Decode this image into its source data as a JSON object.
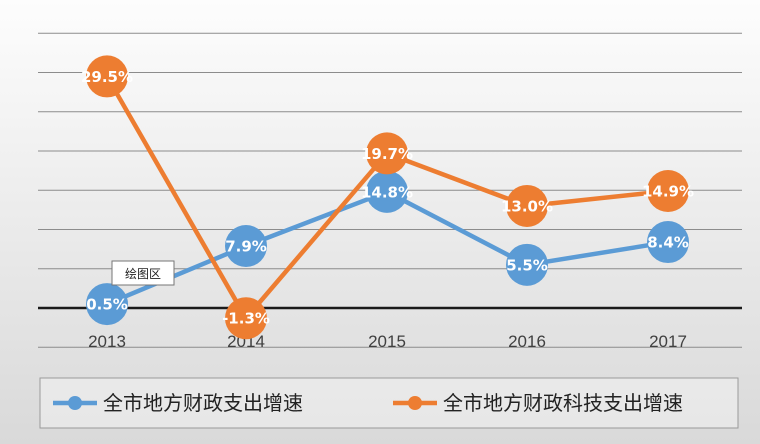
{
  "chart_data": {
    "type": "line",
    "categories": [
      "2013",
      "2014",
      "2015",
      "2016",
      "2017"
    ],
    "series": [
      {
        "name": "全市地方财政支出增速",
        "values": [
          0.5,
          7.9,
          14.8,
          5.5,
          8.4
        ],
        "labels": [
          "0.5%",
          "7.9%",
          "14.8%",
          "5.5%",
          "8.4%"
        ],
        "color": "#5B9BD5"
      },
      {
        "name": "全市地方财政科技支出增速",
        "values": [
          29.5,
          -1.3,
          19.7,
          13.0,
          14.9
        ],
        "labels": [
          "29.5%",
          "-1.3%",
          "19.7%",
          "13.0%",
          "14.9%"
        ],
        "color": "#ED7D31"
      }
    ],
    "ylim": [
      -5,
      35
    ],
    "grid": true,
    "legend": "bottom"
  },
  "tooltip": {
    "text": "绘图区"
  },
  "colors": {
    "background_top": "#fdfdfd",
    "background_bottom": "#d9d9d9",
    "gridline": "#8c8c8c",
    "zero_line": "#1a1a1a"
  }
}
